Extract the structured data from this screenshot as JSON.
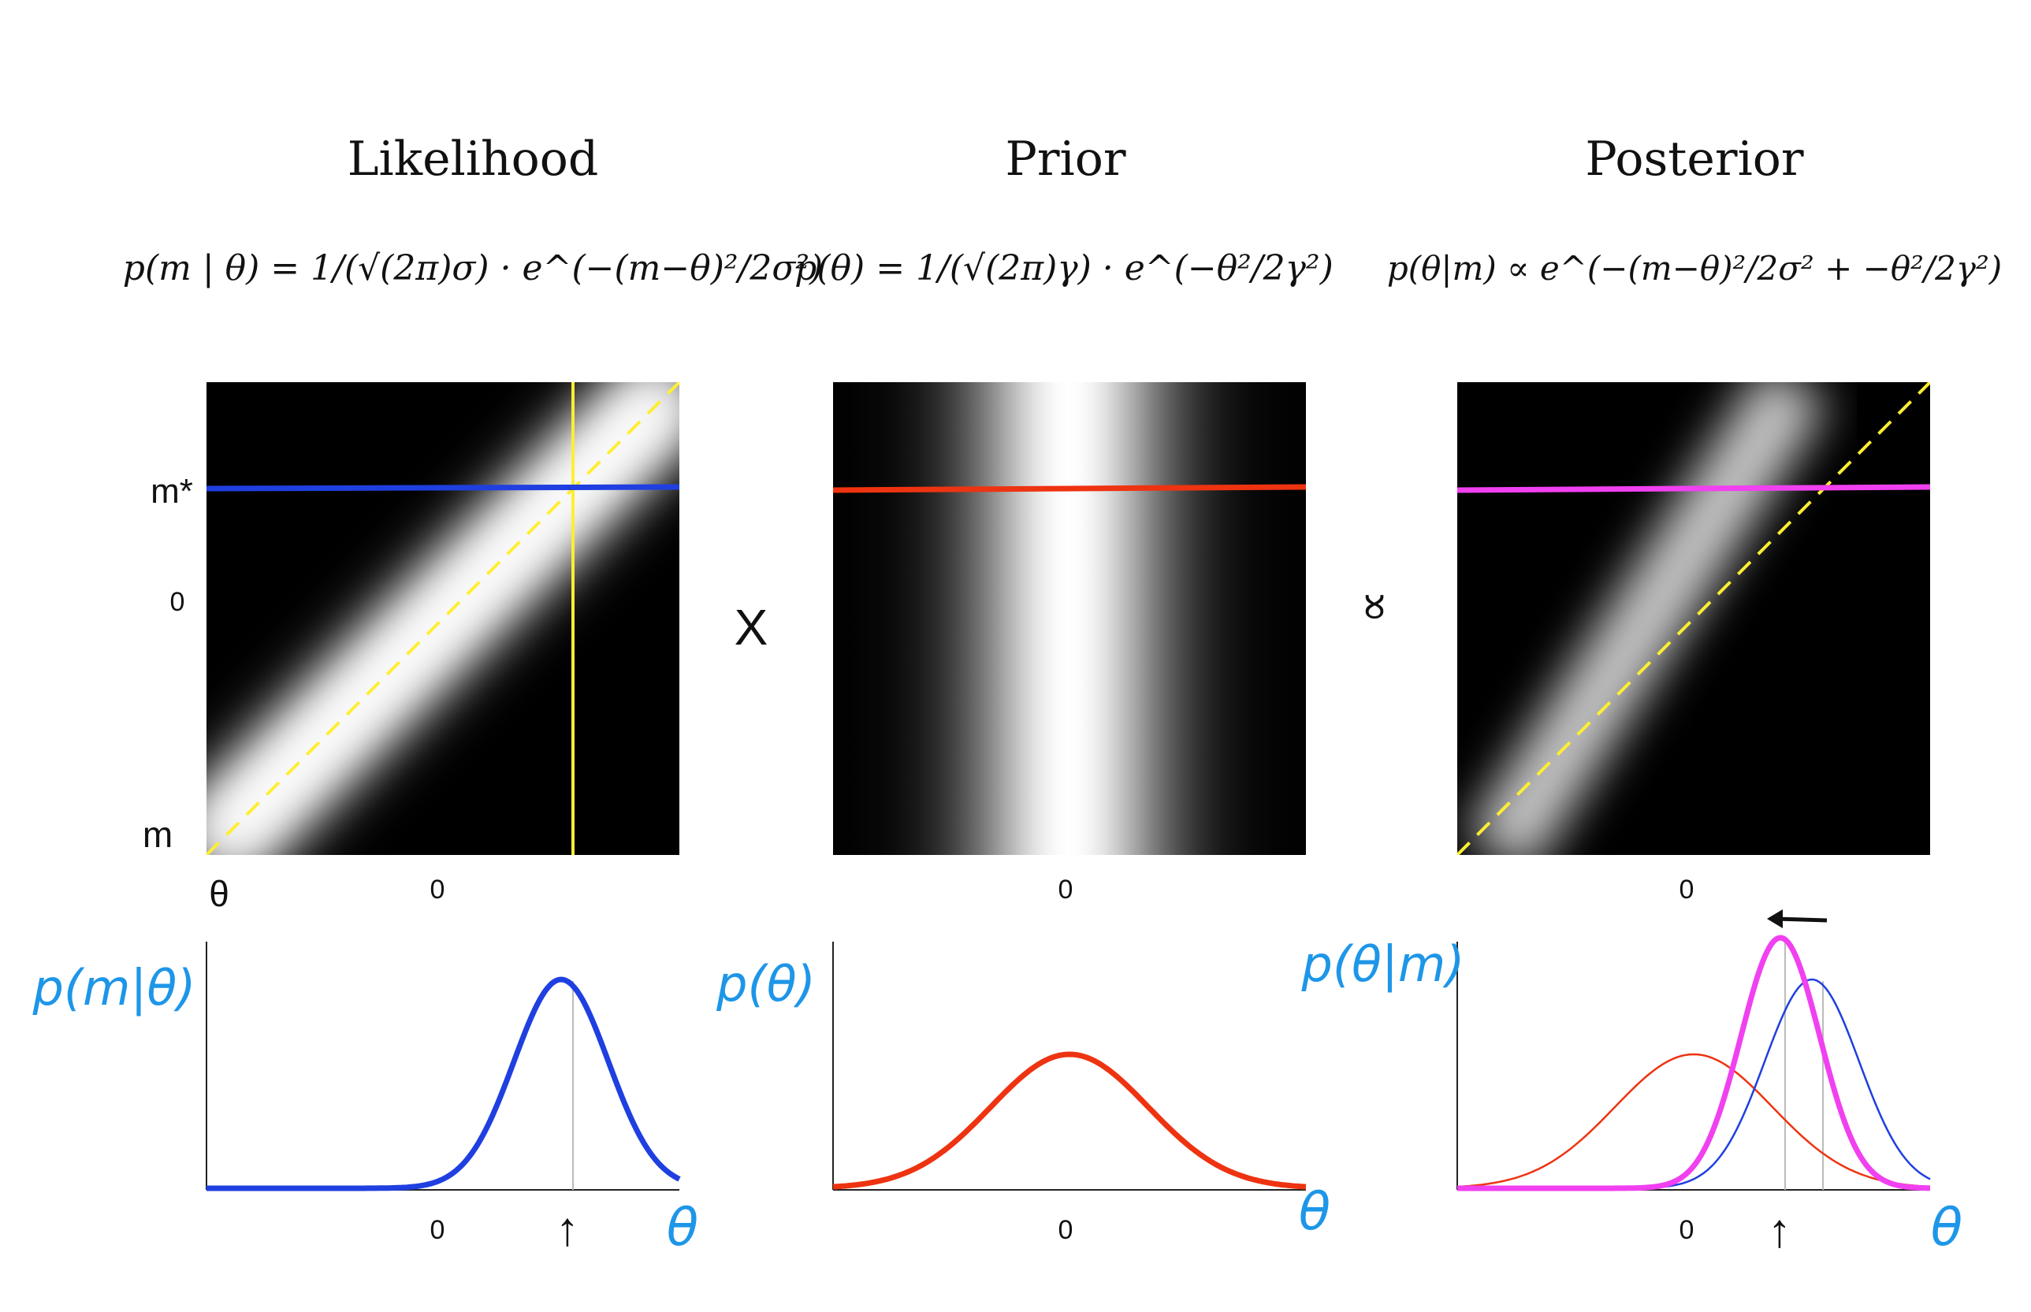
{
  "panels": [
    {
      "title": "Likelihood",
      "formula": "p(m | θ) = 1/(√(2π)σ) · e^(−(m−θ)²/2σ²)",
      "bottom_ylabel": "p(m|θ)",
      "xlabel_hand": "θ"
    },
    {
      "title": "Prior",
      "formula": "p(θ) = 1/(√(2π)γ) · e^(−θ²/2γ²)",
      "bottom_ylabel": "p(θ)",
      "xlabel_hand": "θ"
    },
    {
      "title": "Posterior",
      "formula": "p(θ|m) ∝ e^(−(m−θ)²/2σ² + −θ²/2γ²)",
      "bottom_ylabel": "p(θ|m)",
      "xlabel_hand": "θ"
    }
  ],
  "operators": {
    "times": "X",
    "proportional": "∝"
  },
  "axes": {
    "m_star": "m*",
    "m": "m",
    "theta": "θ",
    "zero": "0",
    "arrow_up": "↑"
  },
  "colors": {
    "likelihood": "#1f3fe0",
    "prior": "#ee3311",
    "posterior": "#f040f0",
    "diagonal": "#ffee33",
    "handwriting": "#1e96e8",
    "map_background": "#000000"
  },
  "chart_data": {
    "type": "line",
    "x_range": [
      -3,
      3
    ],
    "m_star": 1.5,
    "sigma": 0.6,
    "gamma": 1.0,
    "posterior_mean": 1.1,
    "posterior_sd": 0.5,
    "series": [
      {
        "name": "p(m|θ)",
        "mean": 1.5,
        "sd": 0.6
      },
      {
        "name": "p(θ)",
        "mean": 0.0,
        "sd": 1.0
      },
      {
        "name": "p(θ|m)",
        "mean": 1.1,
        "sd": 0.5
      }
    ]
  }
}
